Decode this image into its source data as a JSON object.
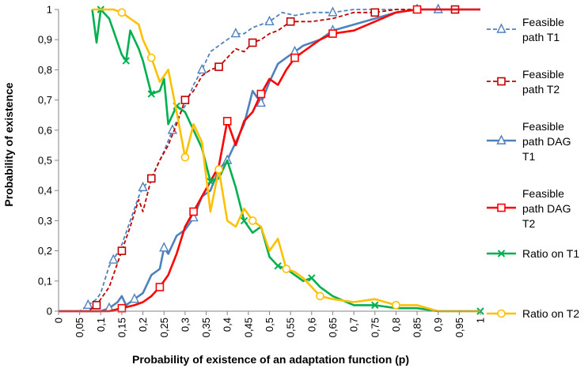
{
  "chart_data": {
    "type": "line",
    "title": "",
    "xlabel": "Probability of existence of an adaptation function (p)",
    "ylabel": "Probability of existence",
    "xlim": [
      0,
      1
    ],
    "ylim": [
      0,
      1
    ],
    "x_ticks": [
      "0",
      "0,05",
      "0,1",
      "0,15",
      "0,2",
      "0,25",
      "0,3",
      "0,35",
      "0,4",
      "0,45",
      "0,5",
      "0,55",
      "0,6",
      "0,65",
      "0,7",
      "0,75",
      "0,8",
      "0,85",
      "0,9",
      "0,95",
      "1"
    ],
    "y_ticks": [
      "0",
      "0,1",
      "0,2",
      "0,3",
      "0,4",
      "0,5",
      "0,6",
      "0,7",
      "0,8",
      "0,9",
      "1"
    ],
    "grid": false,
    "legend_position": "right",
    "series": [
      {
        "name": "Feasible path T1",
        "color": "#4f81bd",
        "dash": "dashed",
        "marker": "triangle",
        "x": [
          0,
          0.05,
          0.07,
          0.09,
          0.1,
          0.12,
          0.13,
          0.15,
          0.17,
          0.19,
          0.2,
          0.22,
          0.24,
          0.25,
          0.27,
          0.29,
          0.3,
          0.32,
          0.34,
          0.36,
          0.38,
          0.4,
          0.42,
          0.44,
          0.46,
          0.48,
          0.5,
          0.53,
          0.56,
          0.6,
          0.65,
          0.7,
          0.75,
          0.8,
          0.9,
          1
        ],
        "y": [
          0,
          0,
          0.02,
          0.04,
          0.06,
          0.15,
          0.17,
          0.22,
          0.3,
          0.38,
          0.41,
          0.44,
          0.5,
          0.53,
          0.6,
          0.66,
          0.68,
          0.75,
          0.8,
          0.86,
          0.88,
          0.9,
          0.92,
          0.92,
          0.94,
          0.95,
          0.96,
          0.99,
          0.98,
          0.99,
          0.99,
          1,
          1,
          1,
          1,
          1
        ]
      },
      {
        "name": "Feasible path T2",
        "color": "#c00000",
        "dash": "dashed",
        "marker": "square",
        "x": [
          0,
          0.07,
          0.09,
          0.1,
          0.12,
          0.13,
          0.15,
          0.17,
          0.19,
          0.2,
          0.22,
          0.24,
          0.26,
          0.28,
          0.3,
          0.32,
          0.34,
          0.36,
          0.38,
          0.4,
          0.42,
          0.44,
          0.46,
          0.48,
          0.5,
          0.52,
          0.55,
          0.6,
          0.65,
          0.7,
          0.75,
          0.8,
          0.85,
          0.9,
          0.94,
          1
        ],
        "y": [
          0,
          0,
          0.02,
          0.04,
          0.08,
          0.12,
          0.2,
          0.28,
          0.37,
          0.33,
          0.44,
          0.5,
          0.55,
          0.62,
          0.7,
          0.73,
          0.78,
          0.8,
          0.81,
          0.84,
          0.87,
          0.86,
          0.89,
          0.9,
          0.92,
          0.93,
          0.96,
          0.96,
          0.97,
          0.99,
          0.99,
          1,
          1,
          1,
          1,
          1
        ]
      },
      {
        "name": "Feasible path DAG T1",
        "color": "#4f81bd",
        "dash": "solid",
        "marker": "triangle",
        "x": [
          0,
          0.1,
          0.12,
          0.14,
          0.15,
          0.16,
          0.18,
          0.2,
          0.22,
          0.24,
          0.25,
          0.26,
          0.28,
          0.3,
          0.32,
          0.34,
          0.36,
          0.38,
          0.4,
          0.42,
          0.44,
          0.46,
          0.48,
          0.5,
          0.52,
          0.54,
          0.56,
          0.58,
          0.6,
          0.62,
          0.65,
          0.7,
          0.75,
          0.8,
          0.85,
          0.9,
          1
        ],
        "y": [
          0,
          0,
          0.01,
          0.03,
          0.05,
          0.02,
          0.04,
          0.06,
          0.12,
          0.14,
          0.21,
          0.19,
          0.25,
          0.27,
          0.31,
          0.38,
          0.4,
          0.47,
          0.5,
          0.56,
          0.62,
          0.73,
          0.69,
          0.76,
          0.82,
          0.84,
          0.86,
          0.88,
          0.89,
          0.9,
          0.93,
          0.95,
          0.97,
          0.99,
          1,
          1,
          1
        ]
      },
      {
        "name": "Feasible path DAG T2",
        "color": "#ff0000",
        "dash": "solid",
        "marker": "square",
        "x": [
          0,
          0.12,
          0.15,
          0.18,
          0.2,
          0.22,
          0.24,
          0.26,
          0.28,
          0.3,
          0.32,
          0.34,
          0.36,
          0.38,
          0.4,
          0.42,
          0.44,
          0.46,
          0.48,
          0.5,
          0.52,
          0.54,
          0.56,
          0.58,
          0.6,
          0.62,
          0.65,
          0.7,
          0.75,
          0.8,
          0.85,
          0.9,
          1
        ],
        "y": [
          0,
          0,
          0.01,
          0.02,
          0.03,
          0.05,
          0.08,
          0.12,
          0.19,
          0.28,
          0.33,
          0.38,
          0.43,
          0.48,
          0.63,
          0.55,
          0.63,
          0.66,
          0.72,
          0.77,
          0.75,
          0.8,
          0.84,
          0.86,
          0.88,
          0.9,
          0.92,
          0.93,
          0.96,
          0.99,
          1,
          1,
          1
        ]
      },
      {
        "name": "Ratio on T1",
        "color": "#00b050",
        "dash": "solid",
        "marker": "x",
        "x": [
          0.08,
          0.09,
          0.1,
          0.12,
          0.13,
          0.15,
          0.16,
          0.17,
          0.19,
          0.2,
          0.22,
          0.24,
          0.25,
          0.26,
          0.28,
          0.3,
          0.32,
          0.34,
          0.36,
          0.38,
          0.4,
          0.42,
          0.44,
          0.46,
          0.48,
          0.5,
          0.52,
          0.54,
          0.56,
          0.58,
          0.6,
          0.62,
          0.65,
          0.7,
          0.75,
          0.8,
          0.85,
          0.9,
          1
        ],
        "y": [
          1,
          0.89,
          1,
          0.97,
          0.93,
          0.85,
          0.83,
          0.93,
          0.87,
          0.83,
          0.72,
          0.73,
          0.77,
          0.62,
          0.68,
          0.66,
          0.6,
          0.54,
          0.43,
          0.44,
          0.5,
          0.41,
          0.3,
          0.26,
          0.28,
          0.18,
          0.15,
          0.14,
          0.12,
          0.1,
          0.11,
          0.08,
          0.05,
          0.02,
          0.02,
          0.01,
          0.01,
          0,
          0
        ]
      },
      {
        "name": "Ratio on T2",
        "color": "#ffc000",
        "dash": "solid",
        "marker": "circle",
        "x": [
          0.08,
          0.13,
          0.15,
          0.17,
          0.19,
          0.2,
          0.22,
          0.24,
          0.26,
          0.28,
          0.3,
          0.32,
          0.34,
          0.36,
          0.38,
          0.4,
          0.42,
          0.44,
          0.46,
          0.48,
          0.5,
          0.52,
          0.54,
          0.56,
          0.58,
          0.6,
          0.62,
          0.65,
          0.7,
          0.75,
          0.8,
          0.85,
          0.9,
          1
        ],
        "y": [
          1,
          1,
          0.99,
          0.97,
          0.95,
          0.9,
          0.84,
          0.76,
          0.8,
          0.66,
          0.51,
          0.62,
          0.56,
          0.33,
          0.47,
          0.3,
          0.28,
          0.34,
          0.3,
          0.28,
          0.2,
          0.24,
          0.14,
          0.13,
          0.11,
          0.08,
          0.05,
          0.04,
          0.03,
          0.04,
          0.02,
          0.02,
          0,
          0
        ]
      }
    ]
  },
  "legend": [
    {
      "label_lines": [
        "Feasible",
        "path T1"
      ]
    },
    {
      "label_lines": [
        "Feasible",
        "path T2"
      ]
    },
    {
      "label_lines": [
        "Feasible",
        "path DAG",
        "T1"
      ]
    },
    {
      "label_lines": [
        "Feasible",
        "path DAG",
        "T2"
      ]
    },
    {
      "label_lines": [
        "Ratio on T1"
      ]
    },
    {
      "label_lines": [
        "Ratio on T2"
      ]
    }
  ]
}
